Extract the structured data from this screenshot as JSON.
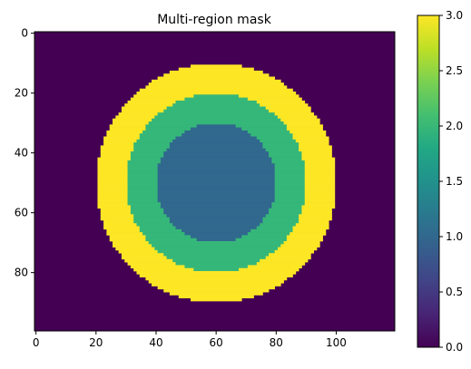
{
  "chart_data": {
    "type": "heatmap",
    "title": "Multi-region mask",
    "xlabel": "",
    "ylabel": "",
    "image": {
      "rows": 100,
      "cols": 120,
      "background_value": 0,
      "center": [
        60,
        50
      ],
      "regions": [
        {
          "value": 3,
          "outer_radius": 40,
          "inner_radius": 30
        },
        {
          "value": 2,
          "outer_radius": 30,
          "inner_radius": 20
        },
        {
          "value": 1,
          "outer_radius": 20,
          "inner_radius": 0
        }
      ]
    },
    "xlim": [
      -0.5,
      119.5
    ],
    "ylim": [
      99.5,
      -0.5
    ],
    "xticks": [
      {
        "value": 0,
        "label": "0"
      },
      {
        "value": 20,
        "label": "20"
      },
      {
        "value": 40,
        "label": "40"
      },
      {
        "value": 60,
        "label": "60"
      },
      {
        "value": 80,
        "label": "80"
      },
      {
        "value": 100,
        "label": "100"
      }
    ],
    "yticks": [
      {
        "value": 0,
        "label": "0"
      },
      {
        "value": 20,
        "label": "20"
      },
      {
        "value": 40,
        "label": "40"
      },
      {
        "value": 60,
        "label": "60"
      },
      {
        "value": 80,
        "label": "80"
      }
    ],
    "colorbar": {
      "colormap": "viridis",
      "range": [
        0,
        3
      ],
      "ticks": [
        {
          "value": 0.0,
          "label": "0.0"
        },
        {
          "value": 0.5,
          "label": "0.5"
        },
        {
          "value": 1.0,
          "label": "1.0"
        },
        {
          "value": 1.5,
          "label": "1.5"
        },
        {
          "value": 2.0,
          "label": "2.0"
        },
        {
          "value": 2.5,
          "label": "2.5"
        },
        {
          "value": 3.0,
          "label": "3.0"
        }
      ]
    },
    "value_colors": {
      "0": "#440154",
      "1": "#31688e",
      "2": "#35b779",
      "3": "#fde725"
    },
    "grid": false,
    "legend": "none"
  }
}
